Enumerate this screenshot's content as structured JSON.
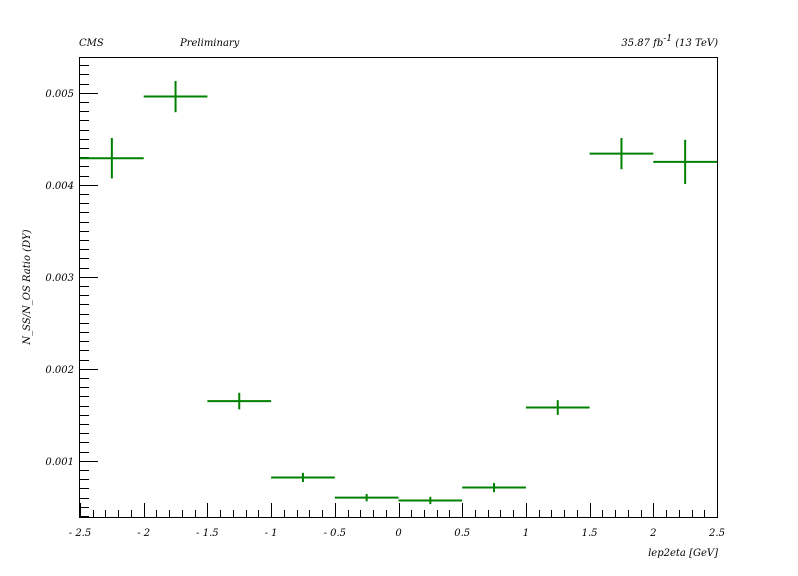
{
  "header": {
    "experiment": "CMS",
    "status": "Preliminary",
    "lumi_value": "35.87 fb",
    "lumi_exponent": "-1",
    "energy": "(13 TeV)"
  },
  "chart_data": {
    "type": "scatter",
    "title": "",
    "xlabel": "lep2eta [GeV]",
    "ylabel": "N_SS/N_OS Ratio (DY)",
    "xlim": [
      -2.5,
      2.5
    ],
    "ylim": [
      0.00039,
      0.00539
    ],
    "grid": false,
    "legend": "none",
    "color": "#008000",
    "x_ticks": [
      -2.5,
      -2,
      -1.5,
      -1,
      -0.5,
      0,
      0.5,
      1,
      1.5,
      2,
      2.5
    ],
    "x_tick_labels": [
      "- 2.5",
      "- 2",
      "- 1.5",
      "- 1",
      "- 0.5",
      "0",
      "0.5",
      "1",
      "1.5",
      "2",
      "2.5"
    ],
    "y_ticks": [
      0.001,
      0.002,
      0.003,
      0.004,
      0.005
    ],
    "y_tick_labels": [
      "0.001",
      "0.002",
      "0.003",
      "0.004",
      "0.005"
    ],
    "points": [
      {
        "x": -2.25,
        "xerr": 0.25,
        "y": 0.00429,
        "yerr": 0.00022
      },
      {
        "x": -1.75,
        "xerr": 0.25,
        "y": 0.00496,
        "yerr": 0.00017
      },
      {
        "x": -1.25,
        "xerr": 0.25,
        "y": 0.00165,
        "yerr": 9e-05
      },
      {
        "x": -0.75,
        "xerr": 0.25,
        "y": 0.00082,
        "yerr": 5e-05
      },
      {
        "x": -0.25,
        "xerr": 0.25,
        "y": 0.0006,
        "yerr": 4e-05
      },
      {
        "x": 0.25,
        "xerr": 0.25,
        "y": 0.00057,
        "yerr": 4e-05
      },
      {
        "x": 0.75,
        "xerr": 0.25,
        "y": 0.00071,
        "yerr": 5e-05
      },
      {
        "x": 1.25,
        "xerr": 0.25,
        "y": 0.00158,
        "yerr": 8e-05
      },
      {
        "x": 1.75,
        "xerr": 0.25,
        "y": 0.00434,
        "yerr": 0.00017
      },
      {
        "x": 2.25,
        "xerr": 0.25,
        "y": 0.00425,
        "yerr": 0.00024
      }
    ]
  }
}
